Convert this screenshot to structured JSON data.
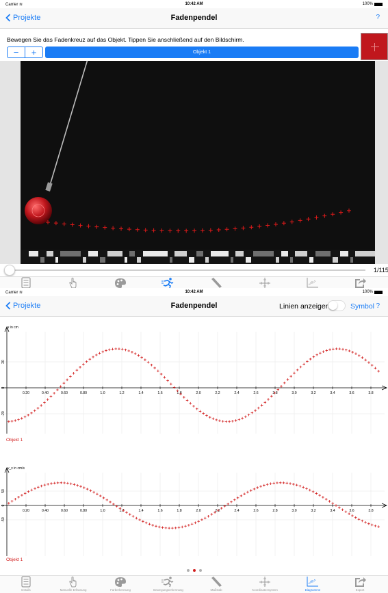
{
  "status": {
    "carrier": "Carrier",
    "time": "10:42 AM",
    "battery": "100%"
  },
  "screen1": {
    "back_label": "Projekte",
    "title": "Fadenpendel",
    "help": "?",
    "instruction": "Bewegen Sie das Fadenkreuz auf das Objekt. Tippen Sie anschließend auf den Bildschirm.",
    "minus": "−",
    "plus": "+",
    "object_button": "Objekt 1",
    "frame_counter": "1/115",
    "slider_position": 0.0
  },
  "screen2": {
    "back_label": "Projekte",
    "title": "Fadenpendel",
    "lines_label": "Linien anzeigen",
    "lines_toggle_on": false,
    "symbol": "Symbol",
    "help": "?",
    "page_indicator": {
      "pages": 3,
      "current": 2
    }
  },
  "tabs": [
    {
      "label": "Details",
      "icon": "list-icon"
    },
    {
      "label": "Manuelle Erfassung",
      "icon": "hand-icon"
    },
    {
      "label": "Farberkennung",
      "icon": "palette-icon"
    },
    {
      "label": "Bewegungserkennung",
      "icon": "runner-icon"
    },
    {
      "label": "Maßstab",
      "icon": "ruler-icon"
    },
    {
      "label": "Koordinatensystem",
      "icon": "axes-icon"
    },
    {
      "label": "Diagramme",
      "icon": "chart-icon"
    },
    {
      "label": "Export",
      "icon": "share-icon"
    }
  ],
  "active_tab_screen1": "Bewegungserkennung",
  "active_tab_screen2": "Diagramme",
  "colors": {
    "accent": "#1a7cf5",
    "series": "#d21e1e",
    "video_bg": "#0f0f0f",
    "bob": "#c0171d"
  },
  "chart_data": [
    {
      "type": "scatter",
      "ylabel": "x in cm",
      "xlabel": "",
      "x_ticks": [
        "0.20",
        "0.40",
        "0.60",
        "0.80",
        "1.0",
        "1.2",
        "1.4",
        "1.6",
        "1.8",
        "2.0",
        "2.2",
        "2.4",
        "2.6",
        "2.8",
        "3.0",
        "3.2",
        "3.4",
        "3.6",
        "3.8"
      ],
      "y_ticks": [
        "20",
        "0",
        "-20"
      ],
      "xlim": [
        0,
        3.9
      ],
      "ylim": [
        -40,
        40
      ],
      "grid": true,
      "series": [
        {
          "name": "Objekt 1",
          "model": {
            "amplitude": 28,
            "offset": 2,
            "period": 2.3,
            "peak_x": 1.15,
            "x_start": 0.02,
            "x_end": 3.88,
            "points": 115
          }
        }
      ]
    },
    {
      "type": "scatter",
      "ylabel": "v_x in cm/s",
      "xlabel": "",
      "x_ticks": [
        "0.20",
        "0.40",
        "0.60",
        "0.80",
        "1.0",
        "1.2",
        "1.4",
        "1.6",
        "1.8",
        "2.0",
        "2.2",
        "2.4",
        "2.6",
        "2.8",
        "3.0",
        "3.2",
        "3.4",
        "3.6",
        "3.8"
      ],
      "y_ticks": [
        "50",
        "0",
        "-50"
      ],
      "xlim": [
        0,
        3.9
      ],
      "ylim": [
        -100,
        100
      ],
      "grid": true,
      "series": [
        {
          "name": "Objekt 1",
          "model": {
            "amplitude": 79,
            "offset": 0,
            "period": 2.3,
            "peak_x": 0.56,
            "x_start": 0.02,
            "x_end": 3.88,
            "points": 114
          }
        }
      ]
    }
  ]
}
